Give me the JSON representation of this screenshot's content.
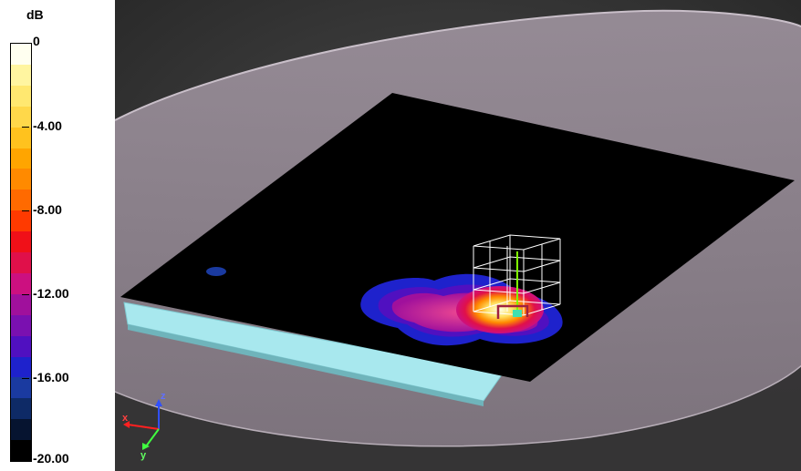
{
  "colorbar": {
    "unit": "dB",
    "labels": [
      "0",
      "-4.00",
      "-8.00",
      "-12.00",
      "-16.00",
      "-20.00"
    ],
    "colors": [
      "#fffff0",
      "#fff5a0",
      "#ffe870",
      "#ffd84a",
      "#ffc21e",
      "#ffa500",
      "#ff8a00",
      "#ff6a00",
      "#ff3a00",
      "#f01018",
      "#e0104a",
      "#cc1080",
      "#a0109c",
      "#7a10b0",
      "#5010c0",
      "#1e22cc",
      "#1a3aa0",
      "#0e2a66",
      "#061430",
      "#000000"
    ]
  },
  "viewport": {
    "axes": {
      "x": "x",
      "y": "y",
      "z": "z"
    }
  }
}
